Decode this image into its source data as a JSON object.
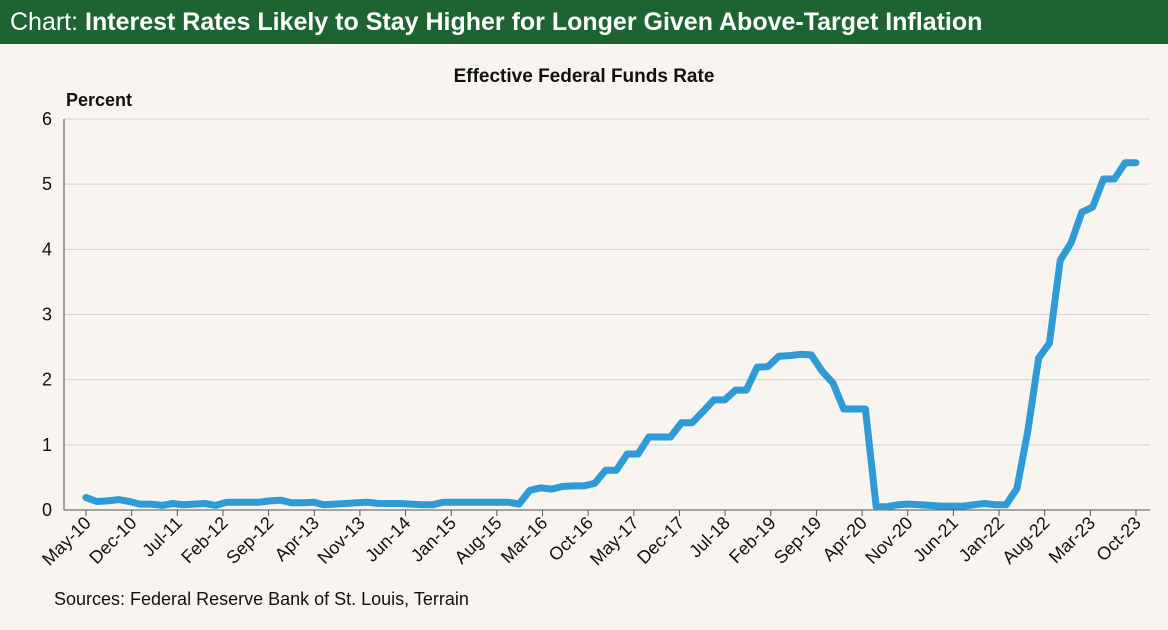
{
  "header": {
    "prefix": "Chart:",
    "title": "Interest Rates Likely to Stay Higher for Longer Given Above-Target Inflation"
  },
  "footer": {
    "sources": "Sources: Federal Reserve Bank of St. Louis, Terrain"
  },
  "colors": {
    "header_bg": "#1e6433",
    "line": "#2e9ad6",
    "grid": "#d6d2cd",
    "background": "#f8f4f0"
  },
  "chart_data": {
    "type": "line",
    "title": "Effective Federal Funds Rate",
    "ylabel": "Percent",
    "xlabel": "",
    "ylim": [
      0,
      6
    ],
    "yticks": [
      0,
      1,
      2,
      3,
      4,
      5,
      6
    ],
    "grid": true,
    "x_tick_labels": [
      "May-10",
      "Dec-10",
      "Jul-11",
      "Feb-12",
      "Sep-12",
      "Apr-13",
      "Nov-13",
      "Jun-14",
      "Jan-15",
      "Aug-15",
      "Mar-16",
      "Oct-16",
      "May-17",
      "Dec-17",
      "Jul-18",
      "Feb-19",
      "Sep-19",
      "Apr-20",
      "Nov-20",
      "Jun-21",
      "Jan-22",
      "Aug-22",
      "Mar-23",
      "Oct-23"
    ],
    "series": [
      {
        "frequency": "quarterly",
        "start": "May-10",
        "values": [
          0.19,
          0.13,
          0.14,
          0.16,
          0.13,
          0.09,
          0.09,
          0.07,
          0.1,
          0.08,
          0.09,
          0.1,
          0.07,
          0.12,
          0.12,
          0.12,
          0.12,
          0.14,
          0.15,
          0.11,
          0.11,
          0.12,
          0.08,
          0.09,
          0.1,
          0.11,
          0.12,
          0.1,
          0.1,
          0.1,
          0.09,
          0.08,
          0.08,
          0.12,
          0.12,
          0.12,
          0.12,
          0.12,
          0.12,
          0.12,
          0.09,
          0.3,
          0.34,
          0.32,
          0.36,
          0.37,
          0.37,
          0.41,
          0.61,
          0.61,
          0.86,
          0.86,
          1.12,
          1.12,
          1.12,
          1.34,
          1.34,
          1.51,
          1.69,
          1.69,
          1.84,
          1.84,
          2.19,
          2.2,
          2.36,
          2.37,
          2.39,
          2.38,
          2.13,
          1.95,
          1.55,
          1.55,
          1.55,
          0.05,
          0.05,
          0.08,
          0.09,
          0.08,
          0.07,
          0.06,
          0.06,
          0.06,
          0.08,
          0.1,
          0.08,
          0.08,
          0.33,
          1.21,
          2.33,
          2.56,
          3.83,
          4.1,
          4.57,
          4.65,
          5.08,
          5.08,
          5.33,
          5.33
        ]
      }
    ]
  }
}
